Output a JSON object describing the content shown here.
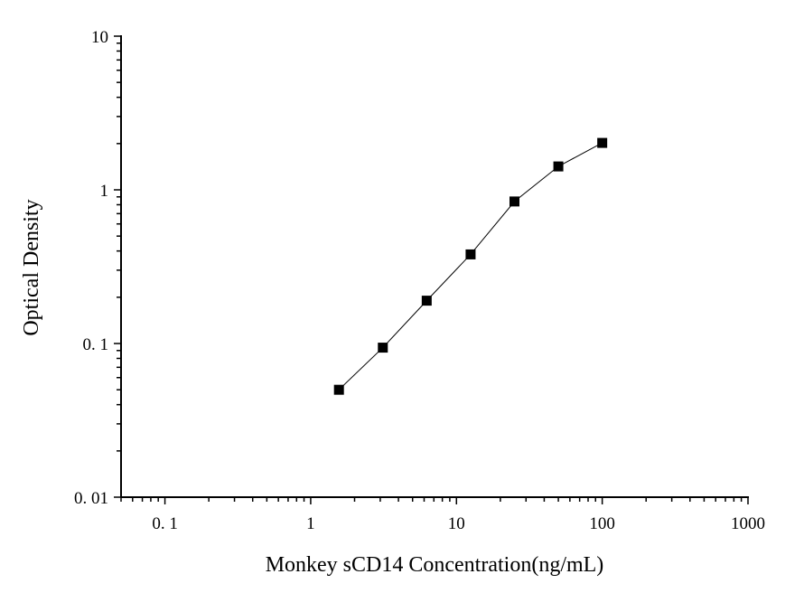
{
  "chart_data": {
    "type": "line",
    "title": "",
    "xlabel": "Monkey sCD14 Concentration(ng/mL)",
    "ylabel": "Optical Density",
    "xscale": "log",
    "yscale": "log",
    "xlim": [
      0.05,
      1000
    ],
    "ylim": [
      0.01,
      10
    ],
    "grid": false,
    "legend": "none",
    "x_ticks": [
      {
        "value": 0.1,
        "label": "0. 1"
      },
      {
        "value": 1,
        "label": "1"
      },
      {
        "value": 10,
        "label": "10"
      },
      {
        "value": 100,
        "label": "100"
      },
      {
        "value": 1000,
        "label": "1000"
      }
    ],
    "y_ticks": [
      {
        "value": 0.01,
        "label": "0. 01"
      },
      {
        "value": 0.1,
        "label": "0. 1"
      },
      {
        "value": 1,
        "label": "1"
      },
      {
        "value": 10,
        "label": "10"
      }
    ],
    "series": [
      {
        "marker": "square",
        "color": "#000000",
        "x": [
          1.5625,
          3.125,
          6.25,
          12.5,
          25,
          50,
          100
        ],
        "y": [
          0.05,
          0.094,
          0.19,
          0.38,
          0.84,
          1.42,
          2.02
        ]
      }
    ]
  }
}
